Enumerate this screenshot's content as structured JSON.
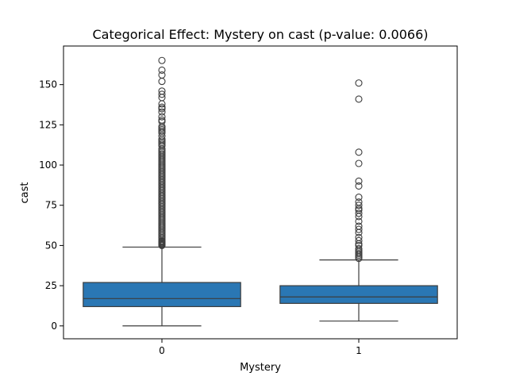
{
  "chart_data": {
    "type": "box",
    "title": "Categorical Effect: Mystery on cast (p-value: 0.0066)",
    "xlabel": "Mystery",
    "ylabel": "cast",
    "categories": [
      "0",
      "1"
    ],
    "ylim": [
      -8,
      174
    ],
    "yticks": [
      0,
      25,
      50,
      75,
      100,
      125,
      150
    ],
    "box_color": "#2a77b4",
    "line_color": "#3d3d3d",
    "boxes": [
      {
        "category": "0",
        "whisker_low": 0,
        "q1": 12,
        "median": 17,
        "q3": 27,
        "whisker_high": 49,
        "outliers": [
          50,
          50.5,
          51,
          51.5,
          52,
          52.5,
          53,
          54,
          55,
          56,
          57,
          58,
          59,
          60,
          61,
          62,
          63,
          64,
          65,
          66,
          67,
          68,
          69,
          70,
          71,
          72,
          73,
          74,
          75,
          76,
          77,
          78,
          79,
          80,
          81,
          82,
          83,
          84,
          85,
          86,
          87,
          88,
          89,
          90,
          91,
          92,
          93,
          94,
          95,
          96,
          97,
          98,
          99,
          100,
          101,
          102,
          103,
          104,
          105,
          106,
          107,
          108,
          109,
          110,
          112,
          113,
          114,
          115,
          116,
          118,
          120,
          121,
          122,
          123,
          124,
          127,
          128,
          130,
          133,
          135,
          136,
          138,
          142,
          144,
          146,
          152,
          156,
          159,
          165
        ]
      },
      {
        "category": "1",
        "whisker_low": 3,
        "q1": 14,
        "median": 18,
        "q3": 25,
        "whisker_high": 41,
        "outliers": [
          42,
          43,
          44,
          45,
          46,
          47,
          48,
          50,
          51,
          53,
          55,
          58,
          60,
          62,
          65,
          68,
          70,
          72,
          73,
          75,
          77,
          80,
          87,
          90,
          101,
          108,
          141,
          151
        ]
      }
    ]
  }
}
